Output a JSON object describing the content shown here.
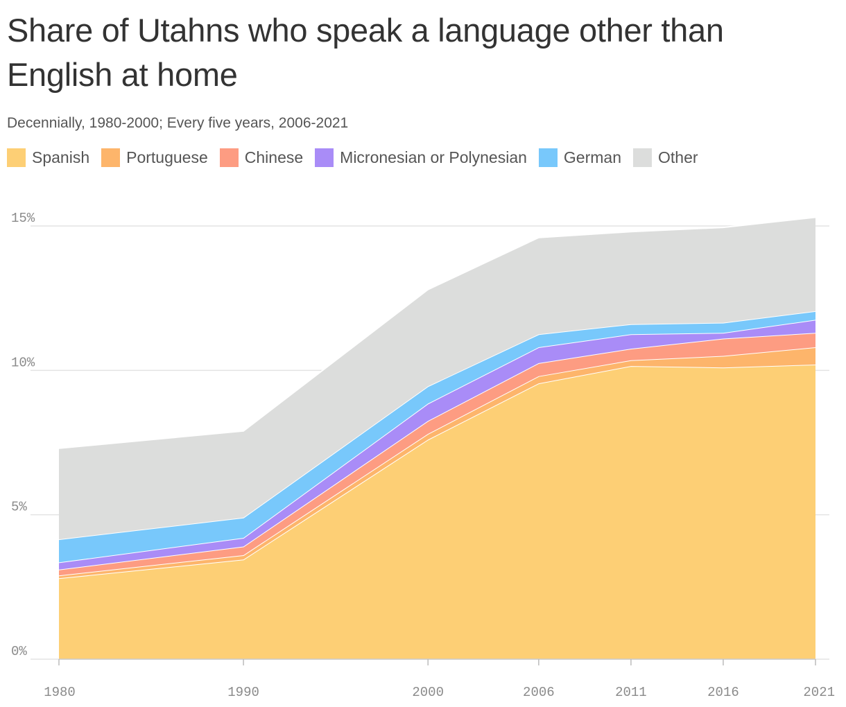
{
  "title": "Share of Utahns who speak a language other than English at home",
  "subtitle": "Decennially, 1980-2000; Every five years, 2006-2021",
  "legend": [
    {
      "label": "Spanish",
      "color": "#FDCF75"
    },
    {
      "label": "Portuguese",
      "color": "#FDB56B"
    },
    {
      "label": "Chinese",
      "color": "#FD9C82"
    },
    {
      "label": "Micronesian or Polynesian",
      "color": "#A98CF7"
    },
    {
      "label": "German",
      "color": "#78C8FB"
    },
    {
      "label": "Other",
      "color": "#DCDDDC"
    }
  ],
  "chart_data": {
    "type": "area",
    "stacked": true,
    "x": [
      1980,
      1990,
      2000,
      2006,
      2011,
      2016,
      2021
    ],
    "xtick_labels": [
      "1980",
      "1990",
      "2000",
      "2006",
      "2011",
      "2016",
      "2021"
    ],
    "ylim": [
      0,
      15
    ],
    "yticks": [
      0,
      5,
      10,
      15
    ],
    "ytick_labels": [
      "0%",
      "5%",
      "10%",
      "15%"
    ],
    "grid": true,
    "legend_position": "top-left",
    "series": [
      {
        "name": "Spanish",
        "color": "#FDCF75",
        "values": [
          2.8,
          3.45,
          7.6,
          9.55,
          10.15,
          10.1,
          10.2
        ]
      },
      {
        "name": "Portuguese",
        "color": "#FDB56B",
        "values": [
          0.1,
          0.15,
          0.2,
          0.25,
          0.2,
          0.4,
          0.6
        ]
      },
      {
        "name": "Chinese",
        "color": "#FD9C82",
        "values": [
          0.2,
          0.3,
          0.45,
          0.45,
          0.4,
          0.6,
          0.5
        ]
      },
      {
        "name": "Micronesian or Polynesian",
        "color": "#A98CF7",
        "values": [
          0.25,
          0.3,
          0.6,
          0.55,
          0.5,
          0.2,
          0.45
        ]
      },
      {
        "name": "German",
        "color": "#78C8FB",
        "values": [
          0.8,
          0.7,
          0.6,
          0.45,
          0.35,
          0.35,
          0.3
        ]
      },
      {
        "name": "Other",
        "color": "#DCDDDC",
        "values": [
          3.15,
          3.0,
          3.35,
          3.35,
          3.2,
          3.3,
          3.25
        ]
      }
    ]
  }
}
